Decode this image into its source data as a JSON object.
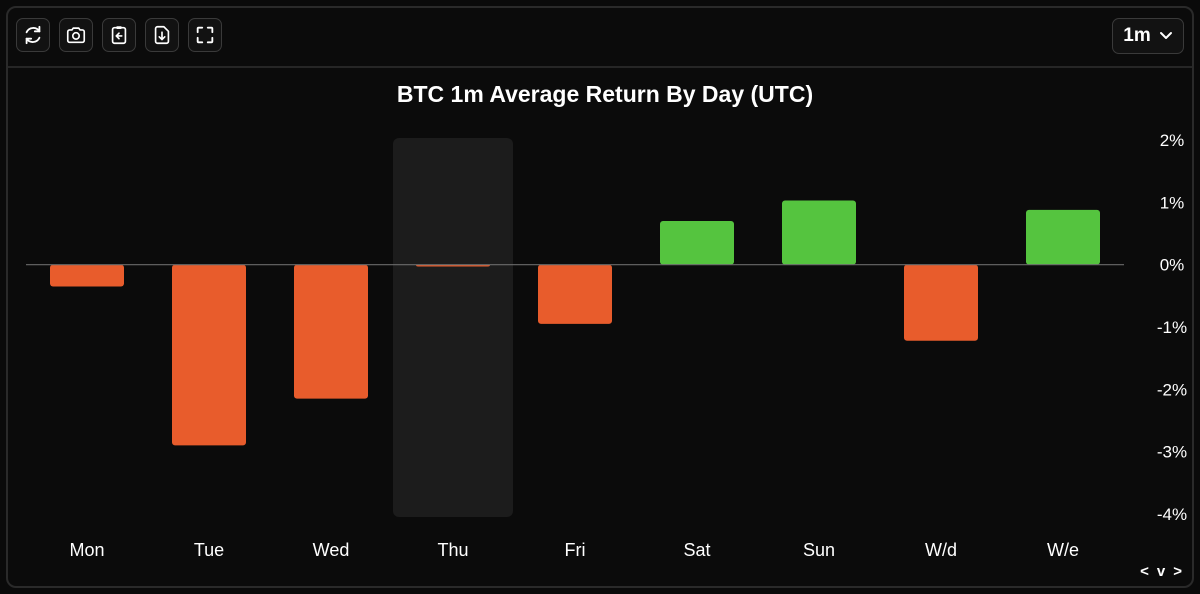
{
  "toolbar": {
    "buttons": [
      {
        "name": "refresh-button",
        "icon": "refresh-icon"
      },
      {
        "name": "screenshot-button",
        "icon": "camera-icon"
      },
      {
        "name": "copy-clipboard-button",
        "icon": "clipboard-icon"
      },
      {
        "name": "download-button",
        "icon": "download-icon"
      },
      {
        "name": "fullscreen-button",
        "icon": "fullscreen-icon"
      }
    ],
    "timeframe": "1m",
    "timeframe_icon": "chevron-down-icon"
  },
  "colors": {
    "negative": "#e85c2c",
    "positive": "#55c43f",
    "highlight": "#1c1c1c",
    "zero_line": "#6b6b6b"
  },
  "chart_data": {
    "type": "bar",
    "title": "BTC 1m Average Return By Day (UTC)",
    "categories": [
      "Mon",
      "Tue",
      "Wed",
      "Thu",
      "Fri",
      "Sat",
      "Sun",
      "W/d",
      "W/e"
    ],
    "values": [
      -0.35,
      -2.9,
      -2.15,
      -0.03,
      -0.95,
      0.7,
      1.03,
      -1.22,
      0.88
    ],
    "unit": "%",
    "ylim": [
      -4,
      2
    ],
    "yticks": [
      2,
      1,
      0,
      -1,
      -2,
      -3,
      -4
    ],
    "ytick_labels": [
      "2%",
      "1%",
      "0%",
      "-1%",
      "-2%",
      "-3%",
      "-4%"
    ],
    "highlighted_category": "Thu",
    "grid": false,
    "y_axis_position": "right"
  },
  "nav": {
    "prev": "<",
    "down": "v",
    "next": ">"
  }
}
